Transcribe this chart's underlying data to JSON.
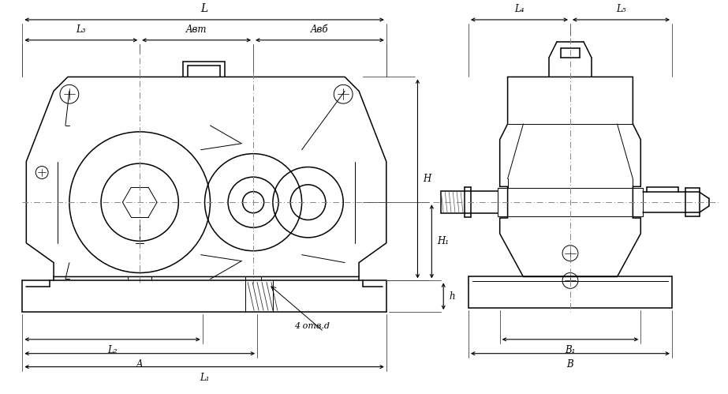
{
  "bg": "#ffffff",
  "lc": "#000000",
  "figsize": [
    9.23,
    4.99
  ],
  "dpi": 100,
  "labels": {
    "L": "L",
    "L1": "L₁",
    "L2": "L₂",
    "L3": "L₃",
    "L4": "L₄",
    "L5": "L₅",
    "Awt": "Aвт",
    "Awb": "Aвб",
    "H": "H",
    "H1": "H₁",
    "h": "h",
    "A": "A",
    "B": "B",
    "B1": "B₁",
    "holes": "4 отв.d"
  }
}
